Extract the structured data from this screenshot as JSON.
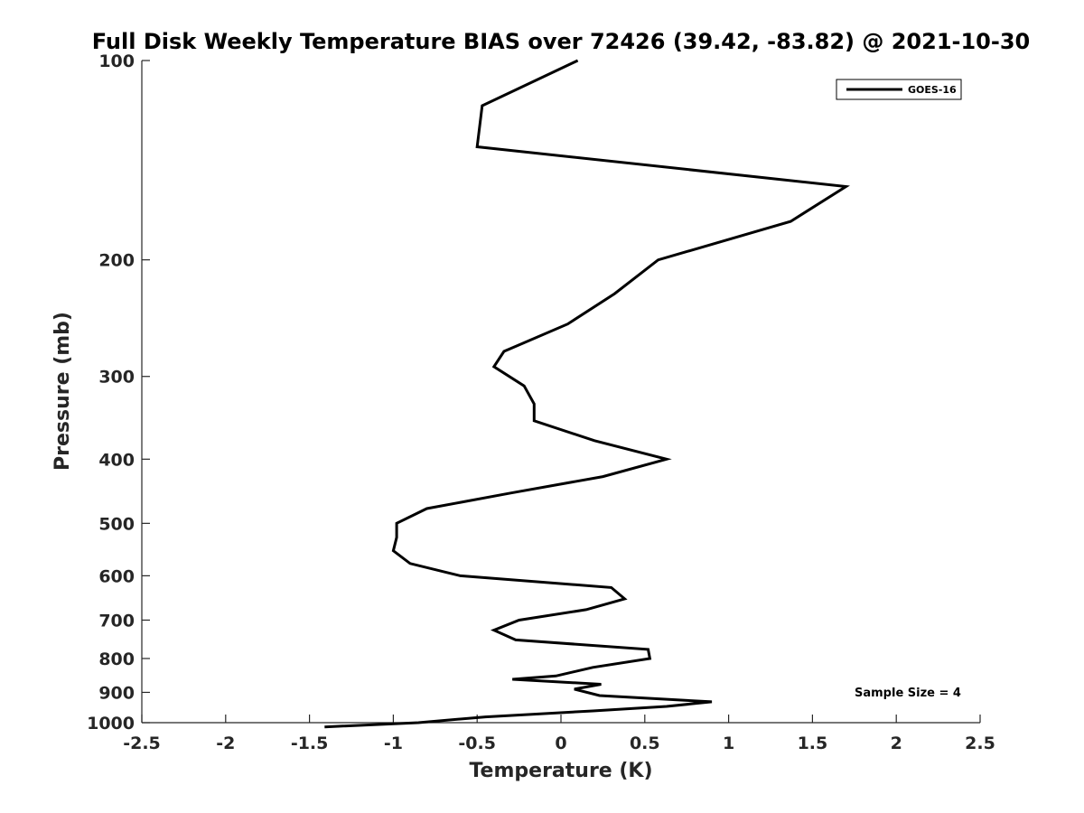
{
  "chart_data": {
    "type": "line",
    "title": "Full Disk Weekly Temperature BIAS over 72426 (39.42, -83.82) @ 2021-10-30",
    "xlabel": "Temperature (K)",
    "ylabel": "Pressure (mb)",
    "xlim": [
      -2.5,
      2.5
    ],
    "ylim": [
      100,
      1000
    ],
    "y_scale": "log",
    "y_reversed": true,
    "x_ticks": [
      -2.5,
      -2,
      -1.5,
      -1,
      -0.5,
      0,
      0.5,
      1,
      1.5,
      2,
      2.5
    ],
    "x_tick_labels": [
      "-2.5",
      "-2",
      "-1.5",
      "-1",
      "-0.5",
      "0",
      "0.5",
      "1",
      "1.5",
      "2",
      "2.5"
    ],
    "y_ticks": [
      100,
      200,
      300,
      400,
      500,
      600,
      700,
      800,
      900,
      1000
    ],
    "y_tick_labels": [
      "100",
      "200",
      "300",
      "400",
      "500",
      "600",
      "700",
      "800",
      "900",
      "1000"
    ],
    "grid": false,
    "legend_position": "top-right",
    "series": [
      {
        "name": "GOES-16",
        "color": "#000000",
        "x": [
          0.1,
          -0.47,
          -0.5,
          1.7,
          1.37,
          0.58,
          0.32,
          0.04,
          -0.34,
          -0.4,
          -0.22,
          -0.16,
          -0.16,
          0.2,
          0.63,
          0.25,
          -0.3,
          -0.8,
          -0.98,
          -0.98,
          -1.0,
          -0.9,
          -0.6,
          0.3,
          0.38,
          0.15,
          -0.25,
          -0.4,
          -0.27,
          0.52,
          0.53,
          0.19,
          -0.03,
          -0.29,
          0.24,
          0.08,
          0.23,
          0.9,
          0.63,
          0.19,
          -0.45,
          -0.85,
          -1.41
        ],
        "y": [
          100,
          117,
          135,
          155,
          175,
          200,
          225,
          250,
          275,
          290,
          310,
          330,
          350,
          375,
          400,
          425,
          450,
          475,
          500,
          525,
          550,
          575,
          600,
          625,
          650,
          675,
          700,
          725,
          750,
          775,
          800,
          825,
          850,
          860,
          875,
          890,
          910,
          930,
          945,
          960,
          980,
          1000,
          1015
        ]
      }
    ],
    "annotation": "Sample Size = 4"
  }
}
